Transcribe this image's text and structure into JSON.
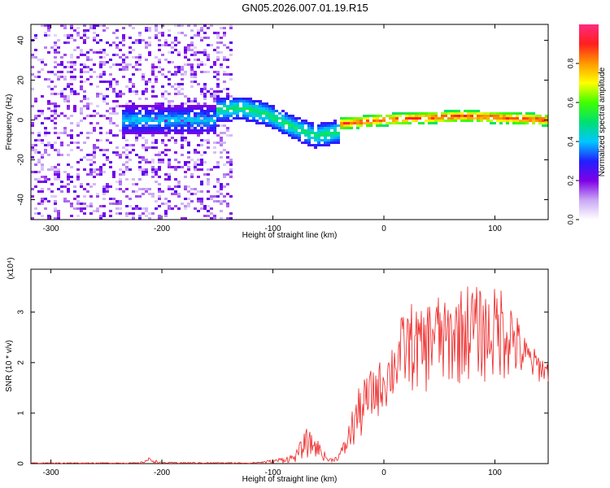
{
  "figure_title": "GN05.2026.007.01.19.R15",
  "chart_data": [
    {
      "type": "heatmap",
      "title": "",
      "xlabel": "Height of straight line (km)",
      "ylabel": "Frequency (Hz)",
      "xlim": [
        -318,
        148
      ],
      "ylim": [
        -50,
        48
      ],
      "xticks": [
        -300,
        -200,
        -100,
        0,
        100
      ],
      "yticks": [
        -40,
        -20,
        0,
        20,
        40
      ],
      "colorbar": {
        "label": "Normalized spectral amplitude",
        "range": [
          0,
          1
        ],
        "ticks": [
          0,
          0.2,
          0.4,
          0.6,
          0.8
        ],
        "tick_labels": [
          "0.0",
          "0.2",
          "0.4",
          "0.6",
          "0.8"
        ],
        "colors": [
          "#ffffff",
          "#c9a8f5",
          "#7e00e6",
          "#2020ff",
          "#00c8ff",
          "#00e070",
          "#40ff00",
          "#ffff00",
          "#ff9900",
          "#ff1f1f",
          "#ff2a80"
        ]
      },
      "regions": [
        {
          "name": "noise",
          "x_range": [
            -318,
            -135
          ],
          "y_range": [
            -50,
            48
          ],
          "amplitude": [
            0.05,
            0.25
          ]
        },
        {
          "name": "onset",
          "x_range": [
            -235,
            -150
          ],
          "center_freq": 0,
          "half_width": 7,
          "amplitude": [
            0.2,
            0.45
          ]
        },
        {
          "name": "chirp",
          "x_range": [
            -150,
            -40
          ],
          "center_freq": [
            5,
            6,
            3,
            -3,
            -8,
            -6
          ],
          "half_width": 6,
          "amplitude": [
            0.25,
            0.55
          ]
        },
        {
          "name": "stable",
          "x_range": [
            -40,
            148
          ],
          "center_freq": [
            -2,
            0,
            1,
            2,
            1,
            0
          ],
          "half_width": 3,
          "amplitude": [
            0.5,
            0.95
          ]
        }
      ]
    },
    {
      "type": "line",
      "title": "",
      "xlabel": "Height of straight line (km)",
      "ylabel": "SNR (10 * v/v)",
      "scale_label": "(x10⁴)",
      "xlim": [
        -318,
        148
      ],
      "ylim": [
        0,
        3.85
      ],
      "xticks": [
        -300,
        -200,
        -100,
        0,
        100
      ],
      "yticks": [
        0,
        1,
        2,
        3
      ],
      "series": [
        {
          "name": "SNR",
          "color": "#ee2020",
          "x": [
            -318,
            -220,
            -212,
            -200,
            -120,
            -100,
            -80,
            -70,
            -60,
            -50,
            -42,
            -35,
            -25,
            -15,
            -5,
            5,
            15,
            25,
            35,
            45,
            55,
            65,
            75,
            85,
            95,
            105,
            115,
            125,
            135,
            148
          ],
          "envelope": [
            0.02,
            0.02,
            0.12,
            0.03,
            0.02,
            0.08,
            0.2,
            0.7,
            0.5,
            0.1,
            0.15,
            0.5,
            1.4,
            1.8,
            2.0,
            2.3,
            2.9,
            3.2,
            3.0,
            3.5,
            3.2,
            3.4,
            3.6,
            3.5,
            3.4,
            3.6,
            3.3,
            2.6,
            2.3,
            2.0
          ],
          "floor": [
            0.0,
            0.0,
            0.02,
            0.0,
            0.0,
            0.0,
            0.02,
            0.1,
            0.1,
            0.02,
            0.05,
            0.1,
            0.3,
            0.6,
            0.9,
            1.1,
            1.3,
            1.4,
            1.3,
            1.5,
            1.4,
            1.5,
            1.6,
            1.6,
            1.5,
            1.6,
            1.6,
            1.6,
            1.6,
            1.6
          ]
        }
      ]
    }
  ]
}
